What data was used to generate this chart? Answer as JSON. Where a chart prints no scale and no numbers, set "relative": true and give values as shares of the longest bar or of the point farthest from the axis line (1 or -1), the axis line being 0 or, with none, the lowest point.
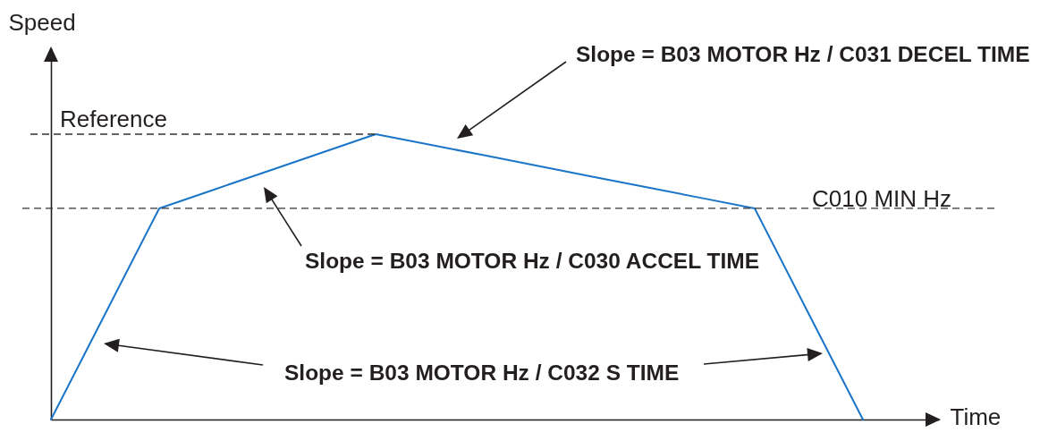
{
  "chart_data": {
    "type": "line",
    "relative": true,
    "xlabel": "Time",
    "ylabel": "Speed",
    "categories": [
      null,
      null,
      null,
      null,
      null,
      null,
      null,
      null,
      null,
      null,
      null,
      null,
      null,
      null,
      null,
      null
    ],
    "values": [
      0,
      0.37,
      0.74,
      0.805,
      0.87,
      0.935,
      1,
      0.963,
      0.926,
      0.889,
      0.851,
      0.814,
      0.777,
      0.74,
      0.37,
      0
    ],
    "color": "#1a75c8",
    "ref_lines": [
      {
        "axis": "y",
        "value": 1,
        "label": "Reference",
        "line_style": "dashed",
        "color": "#333333"
      },
      {
        "axis": "y",
        "value": 0.74,
        "label": "C010 MIN Hz",
        "line_style": "dashed",
        "color": "#333333"
      }
    ],
    "annotations": [
      "Slope = B03 MOTOR Hz / C031 DECEL TIME",
      "Slope = B03 MOTOR Hz / C030 ACCEL TIME",
      "Slope = B03 MOTOR Hz / C032 S TIME"
    ]
  }
}
